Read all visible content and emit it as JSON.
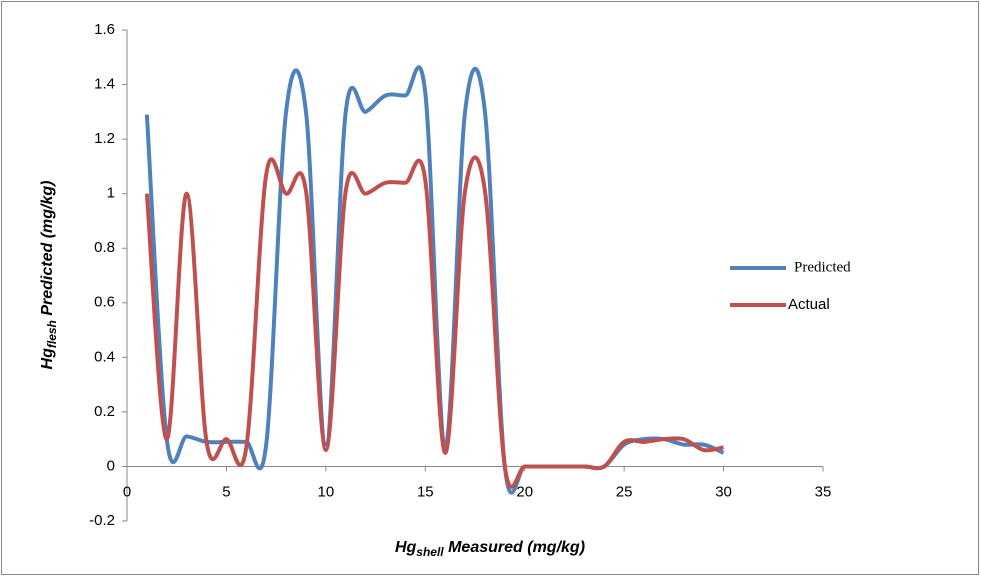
{
  "chart_data": {
    "type": "line",
    "x_label": {
      "main": "Hg",
      "sub": "shell",
      "rest": " Measured (mg/kg)"
    },
    "y_label": {
      "main": "Hg",
      "sub": "flesh",
      "rest": " Predicted (mg/kg)"
    },
    "x": [
      1,
      2,
      3,
      4,
      5,
      6,
      7,
      8,
      9,
      10,
      11,
      12,
      13,
      14,
      15,
      16,
      17,
      18,
      19,
      20,
      21,
      22,
      23,
      24,
      25,
      26,
      27,
      28,
      29,
      30
    ],
    "series": [
      {
        "name": "Predicted",
        "color": "#4f81bd",
        "values": [
          1.29,
          0.1,
          0.11,
          0.09,
          0.09,
          0.09,
          0.08,
          1.3,
          1.3,
          0.08,
          1.3,
          1.3,
          1.36,
          1.36,
          1.37,
          0.07,
          1.3,
          1.3,
          0,
          0,
          0,
          0,
          0,
          0,
          0.08,
          0.1,
          0.1,
          0.08,
          0.08,
          0.05
        ]
      },
      {
        "name": "Actual",
        "color": "#c0504d",
        "values": [
          1.0,
          0.1,
          1.0,
          0.09,
          0.1,
          0.07,
          1.07,
          1.0,
          1.01,
          0.06,
          1.01,
          1.0,
          1.04,
          1.04,
          1.05,
          0.05,
          1.01,
          1.01,
          0,
          0,
          0,
          0,
          0,
          0,
          0.09,
          0.09,
          0.1,
          0.1,
          0.06,
          0.07
        ]
      }
    ],
    "xlim": [
      0,
      35
    ],
    "xticks": [
      0,
      5,
      10,
      15,
      20,
      25,
      30,
      35
    ],
    "ylim": [
      -0.2,
      1.6
    ],
    "yticks": [
      -0.2,
      0,
      0.2,
      0.4,
      0.6,
      0.8,
      1,
      1.2,
      1.4,
      1.6
    ],
    "legend": "right"
  }
}
